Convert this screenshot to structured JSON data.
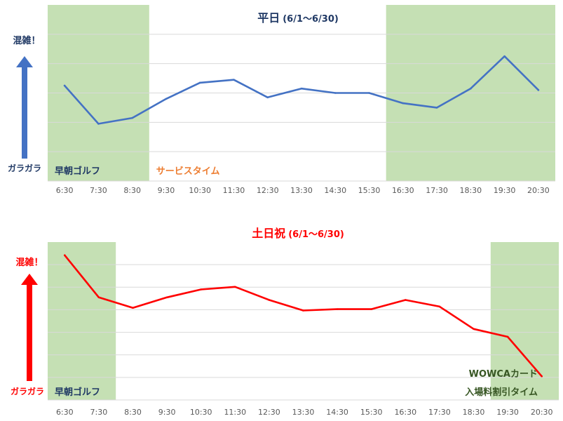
{
  "chart_data": [
    {
      "type": "line",
      "title": "平日",
      "subtitle": "(6/1〜6/30)",
      "title_color": "#1F3864",
      "line_color": "#4472C4",
      "categories": [
        "6:30",
        "7:30",
        "8:30",
        "9:30",
        "10:30",
        "11:30",
        "12:30",
        "13:30",
        "14:30",
        "15:30",
        "16:30",
        "17:30",
        "18:30",
        "19:30",
        "20:30"
      ],
      "values": [
        65,
        39,
        43,
        56,
        67,
        69,
        57,
        63,
        60,
        60,
        53,
        50,
        63,
        85,
        62
      ],
      "ylim": [
        0,
        120
      ],
      "gridlines": true,
      "axis_high_label": "混雑！",
      "axis_low_label": "ガラガラ",
      "axis_label_color": "#1F3864",
      "arrow_color": "#4472C4",
      "zones": [
        {
          "from": "6:30",
          "to": "8:30",
          "label": "早朝ゴルフ",
          "label_color": "#1F3864",
          "shaded": true,
          "fill": "#C5E0B4"
        },
        {
          "from": "9:30",
          "to": "15:30",
          "label": "サービスタイム",
          "label_color": "#ED7D31",
          "shaded": false
        },
        {
          "from": "16:30",
          "to": "20:30",
          "label": "",
          "shaded": true,
          "fill": "#C5E0B4"
        }
      ]
    },
    {
      "type": "line",
      "title": "土日祝",
      "subtitle": "(6/1〜6/30)",
      "title_color": "#FF0000",
      "line_color": "#FF0000",
      "categories": [
        "6:30",
        "7:30",
        "8:30",
        "9:30",
        "10:30",
        "11:30",
        "12:30",
        "13:30",
        "14:30",
        "15:30",
        "16:30",
        "17:30",
        "18:30",
        "19:30",
        "20:30"
      ],
      "values": [
        95,
        79,
        75,
        79,
        82,
        83,
        78,
        74,
        74.5,
        74.5,
        78,
        75.5,
        67,
        64,
        49
      ],
      "ylim": [
        40,
        100
      ],
      "gridlines": true,
      "axis_high_label": "混雑！",
      "axis_low_label": "ガラガラ",
      "axis_label_color": "#FF0000",
      "arrow_color": "#FF0000",
      "zones": [
        {
          "from": "6:30",
          "to": "7:30",
          "label": "早朝ゴルフ",
          "label_color": "#1F3864",
          "shaded": true,
          "fill": "#C5E0B4"
        },
        {
          "from": "19:30",
          "to": "20:30",
          "label": [
            "WOWCAカード",
            "入場料割引タイム"
          ],
          "label_color": "#375623",
          "shaded": true,
          "fill": "#C5E0B4"
        }
      ]
    }
  ]
}
